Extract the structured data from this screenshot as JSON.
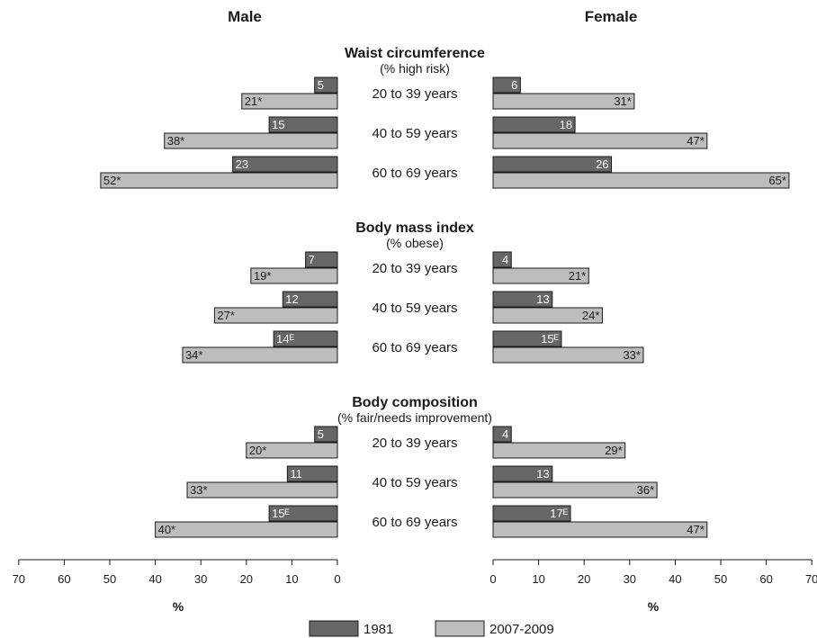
{
  "panels": {
    "male_title": "Male",
    "female_title": "Female"
  },
  "axis": {
    "unit_label": "%",
    "ticks": [
      70,
      60,
      50,
      40,
      30,
      20,
      10,
      0
    ],
    "female_ticks": [
      0,
      10,
      20,
      30,
      40,
      50,
      60,
      70
    ]
  },
  "legend": [
    {
      "label": "1981",
      "color": "#666666"
    },
    {
      "label": "2007-2009",
      "color": "#bdbdbd"
    }
  ],
  "chart_data": {
    "type": "bar",
    "orientation": "horizontal-butterfly",
    "xlim": [
      0,
      70
    ],
    "xlabel": "%",
    "series": [
      {
        "name": "1981",
        "color": "#666666"
      },
      {
        "name": "2007-2009",
        "color": "#bdbdbd"
      }
    ],
    "groups": [
      {
        "title": "Waist circumference",
        "subtitle": "(% high risk)",
        "rows": [
          {
            "age": "20 to 39 years",
            "male": {
              "1981": 5,
              "1981_label": "5",
              "2007-2009": 21,
              "2007-2009_label": "21*"
            },
            "female": {
              "1981": 6,
              "1981_label": "6",
              "2007-2009": 31,
              "2007-2009_label": "31*"
            }
          },
          {
            "age": "40 to 59 years",
            "male": {
              "1981": 15,
              "1981_label": "15",
              "2007-2009": 38,
              "2007-2009_label": "38*"
            },
            "female": {
              "1981": 18,
              "1981_label": "18",
              "2007-2009": 47,
              "2007-2009_label": "47*"
            }
          },
          {
            "age": "60 to 69 years",
            "male": {
              "1981": 23,
              "1981_label": "23",
              "2007-2009": 52,
              "2007-2009_label": "52*"
            },
            "female": {
              "1981": 26,
              "1981_label": "26",
              "2007-2009": 65,
              "2007-2009_label": "65*"
            }
          }
        ]
      },
      {
        "title": "Body mass index",
        "subtitle": "(% obese)",
        "rows": [
          {
            "age": "20 to 39 years",
            "male": {
              "1981": 7,
              "1981_label": "7",
              "2007-2009": 19,
              "2007-2009_label": "19*"
            },
            "female": {
              "1981": 4,
              "1981_label": "4",
              "2007-2009": 21,
              "2007-2009_label": "21*"
            }
          },
          {
            "age": "40 to 59 years",
            "male": {
              "1981": 12,
              "1981_label": "12",
              "2007-2009": 27,
              "2007-2009_label": "27*"
            },
            "female": {
              "1981": 13,
              "1981_label": "13",
              "2007-2009": 24,
              "2007-2009_label": "24*"
            }
          },
          {
            "age": "60 to 69 years",
            "male": {
              "1981": 14,
              "1981_label": "14ᴱ",
              "2007-2009": 34,
              "2007-2009_label": "34*"
            },
            "female": {
              "1981": 15,
              "1981_label": "15ᴱ",
              "2007-2009": 33,
              "2007-2009_label": "33*"
            }
          }
        ]
      },
      {
        "title": "Body composition",
        "subtitle": "(% fair/needs improvement)",
        "rows": [
          {
            "age": "20 to 39 years",
            "male": {
              "1981": 5,
              "1981_label": "5",
              "2007-2009": 20,
              "2007-2009_label": "20*"
            },
            "female": {
              "1981": 4,
              "1981_label": "4",
              "2007-2009": 29,
              "2007-2009_label": "29*"
            }
          },
          {
            "age": "40 to 59 years",
            "male": {
              "1981": 11,
              "1981_label": "11",
              "2007-2009": 33,
              "2007-2009_label": "33*"
            },
            "female": {
              "1981": 13,
              "1981_label": "13",
              "2007-2009": 36,
              "2007-2009_label": "36*"
            }
          },
          {
            "age": "60 to 69 years",
            "male": {
              "1981": 15,
              "1981_label": "15ᴱ",
              "2007-2009": 40,
              "2007-2009_label": "40*"
            },
            "female": {
              "1981": 17,
              "1981_label": "17ᴱ",
              "2007-2009": 47,
              "2007-2009_label": "47*"
            }
          }
        ]
      }
    ]
  }
}
